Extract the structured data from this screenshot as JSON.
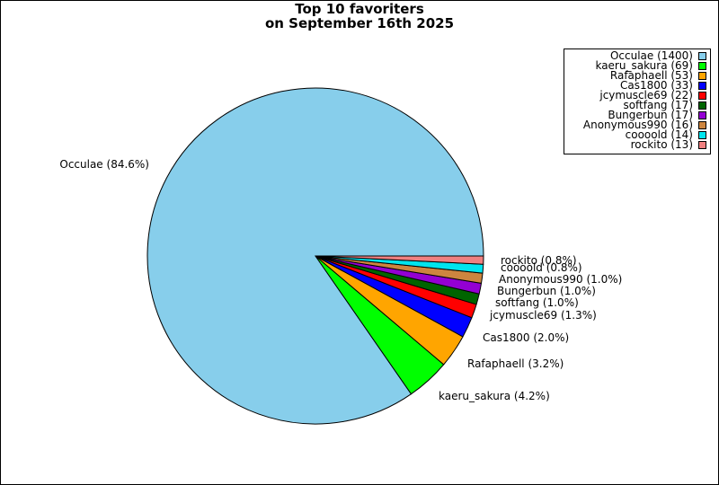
{
  "chart_data": {
    "type": "pie",
    "title_lines": [
      "Top 10 favoriters",
      "on September 16th 2025"
    ],
    "legend_position": "top-right",
    "slices": [
      {
        "name": "Occulae",
        "value": 1400,
        "percent": 84.6,
        "color": "#87ceeb",
        "legend": "Occulae (1400)",
        "label": "Occulae (84.6%)"
      },
      {
        "name": "kaeru_sakura",
        "value": 69,
        "percent": 4.2,
        "color": "#00ff00",
        "legend": "kaeru_sakura (69)",
        "label": "kaeru_sakura (4.2%)"
      },
      {
        "name": "Rafaphaell",
        "value": 53,
        "percent": 3.2,
        "color": "#ffa500",
        "legend": "Rafaphaell (53)",
        "label": "Rafaphaell (3.2%)"
      },
      {
        "name": "Cas1800",
        "value": 33,
        "percent": 2.0,
        "color": "#0000ff",
        "legend": "Cas1800 (33)",
        "label": "Cas1800 (2.0%)"
      },
      {
        "name": "jcymuscle69",
        "value": 22,
        "percent": 1.3,
        "color": "#ff0000",
        "legend": "jcymuscle69 (22)",
        "label": "jcymuscle69 (1.3%)"
      },
      {
        "name": "softfang",
        "value": 17,
        "percent": 1.0,
        "color": "#006400",
        "legend": "softfang (17)",
        "label": "softfang (1.0%)"
      },
      {
        "name": "Bungerbun",
        "value": 17,
        "percent": 1.0,
        "color": "#9400d3",
        "legend": "Bungerbun (17)",
        "label": "Bungerbun (1.0%)"
      },
      {
        "name": "Anonymous990",
        "value": 16,
        "percent": 1.0,
        "color": "#cd853f",
        "legend": "Anonymous990 (16)",
        "label": "Anonymous990 (1.0%)"
      },
      {
        "name": "coooold",
        "value": 14,
        "percent": 0.8,
        "color": "#00e5ee",
        "legend": "coooold (14)",
        "label": "coooold (0.8%)"
      },
      {
        "name": "rockito",
        "value": 13,
        "percent": 0.8,
        "color": "#f08080",
        "legend": "rockito (13)",
        "label": "rockito (0.8%)"
      }
    ]
  }
}
